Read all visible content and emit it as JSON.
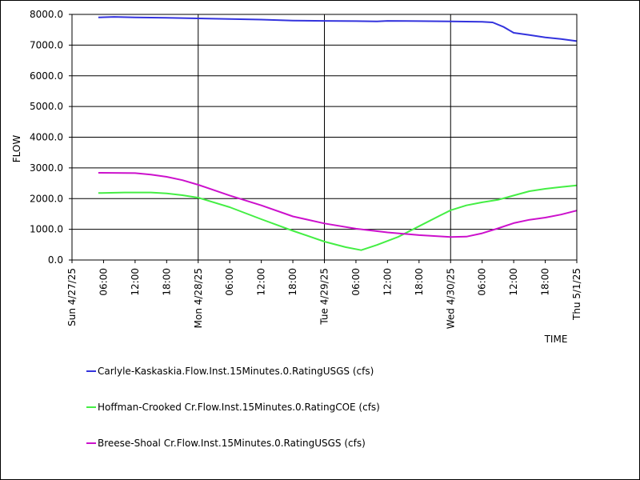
{
  "chart_data": {
    "type": "line",
    "xlabel": "TIME",
    "ylabel": "FLOW",
    "ylim": [
      0,
      8000
    ],
    "yticks": [
      "0.0",
      "1000.0",
      "2000.0",
      "3000.0",
      "4000.0",
      "5000.0",
      "6000.0",
      "7000.0",
      "8000.0"
    ],
    "xlim_hours": [
      0,
      96
    ],
    "xticks": [
      {
        "label": "Sun 4/27/25",
        "major": true
      },
      {
        "label": "06:00",
        "major": false
      },
      {
        "label": "12:00",
        "major": false
      },
      {
        "label": "18:00",
        "major": false
      },
      {
        "label": "Mon 4/28/25",
        "major": true
      },
      {
        "label": "06:00",
        "major": false
      },
      {
        "label": "12:00",
        "major": false
      },
      {
        "label": "18:00",
        "major": false
      },
      {
        "label": "Tue 4/29/25",
        "major": true
      },
      {
        "label": "06:00",
        "major": false
      },
      {
        "label": "12:00",
        "major": false
      },
      {
        "label": "18:00",
        "major": false
      },
      {
        "label": "Wed 4/30/25",
        "major": true
      },
      {
        "label": "06:00",
        "major": false
      },
      {
        "label": "12:00",
        "major": false
      },
      {
        "label": "18:00",
        "major": false
      },
      {
        "label": "Thu 5/1/25",
        "major": true
      }
    ],
    "series": [
      {
        "name": "Carlyle-Kaskaskia.Flow.Inst.15Minutes.0.RatingUSGS (cfs)",
        "color": "#3333dd",
        "points": [
          [
            5,
            7900
          ],
          [
            8,
            7920
          ],
          [
            12,
            7900
          ],
          [
            18,
            7890
          ],
          [
            24,
            7870
          ],
          [
            30,
            7850
          ],
          [
            36,
            7830
          ],
          [
            42,
            7800
          ],
          [
            48,
            7790
          ],
          [
            54,
            7780
          ],
          [
            58,
            7770
          ],
          [
            60,
            7790
          ],
          [
            66,
            7780
          ],
          [
            72,
            7770
          ],
          [
            78,
            7760
          ],
          [
            80,
            7740
          ],
          [
            82,
            7600
          ],
          [
            84,
            7400
          ],
          [
            87,
            7330
          ],
          [
            90,
            7250
          ],
          [
            93,
            7200
          ],
          [
            96,
            7130
          ]
        ]
      },
      {
        "name": "Hoffman-Crooked Cr.Flow.Inst.15Minutes.0.RatingCOE (cfs)",
        "color": "#44ee44",
        "points": [
          [
            5,
            2180
          ],
          [
            10,
            2200
          ],
          [
            15,
            2200
          ],
          [
            18,
            2170
          ],
          [
            21,
            2110
          ],
          [
            24,
            2030
          ],
          [
            30,
            1720
          ],
          [
            36,
            1330
          ],
          [
            42,
            950
          ],
          [
            48,
            600
          ],
          [
            52,
            420
          ],
          [
            55,
            320
          ],
          [
            58,
            490
          ],
          [
            62,
            750
          ],
          [
            66,
            1100
          ],
          [
            70,
            1450
          ],
          [
            72,
            1620
          ],
          [
            75,
            1780
          ],
          [
            78,
            1880
          ],
          [
            81,
            1960
          ],
          [
            84,
            2100
          ],
          [
            87,
            2240
          ],
          [
            90,
            2320
          ],
          [
            93,
            2380
          ],
          [
            96,
            2430
          ]
        ]
      },
      {
        "name": "Breese-Shoal Cr.Flow.Inst.15Minutes.0.RatingUSGS (cfs)",
        "color": "#cc11cc",
        "points": [
          [
            5,
            2840
          ],
          [
            12,
            2830
          ],
          [
            15,
            2780
          ],
          [
            18,
            2710
          ],
          [
            21,
            2600
          ],
          [
            24,
            2450
          ],
          [
            30,
            2100
          ],
          [
            36,
            1780
          ],
          [
            42,
            1420
          ],
          [
            48,
            1190
          ],
          [
            54,
            1020
          ],
          [
            60,
            900
          ],
          [
            66,
            810
          ],
          [
            72,
            750
          ],
          [
            75,
            760
          ],
          [
            78,
            870
          ],
          [
            81,
            1030
          ],
          [
            84,
            1200
          ],
          [
            87,
            1310
          ],
          [
            90,
            1380
          ],
          [
            93,
            1480
          ],
          [
            96,
            1610
          ]
        ]
      }
    ],
    "grid": true,
    "legend_position": "bottom"
  }
}
